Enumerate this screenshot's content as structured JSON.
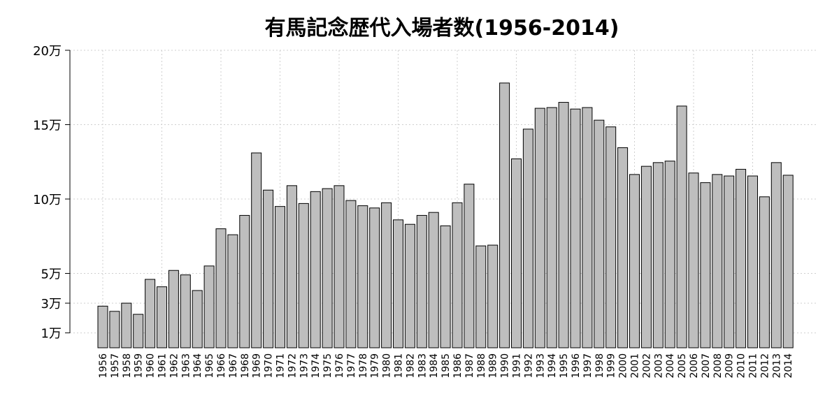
{
  "chart_data": {
    "type": "bar",
    "title": "有馬記念歴代入場者数(1956-2014)",
    "xlabel": "",
    "ylabel": "",
    "ylim": [
      0,
      200000
    ],
    "yticks": [
      10000,
      30000,
      50000,
      100000,
      150000,
      200000
    ],
    "ytick_labels": [
      "1万",
      "3万",
      "5万",
      "10万",
      "15万",
      "20万"
    ],
    "grid": true,
    "bar_color": "#bebebe",
    "categories": [
      "1956",
      "1957",
      "1958",
      "1959",
      "1960",
      "1961",
      "1962",
      "1963",
      "1964",
      "1965",
      "1966",
      "1967",
      "1968",
      "1969",
      "1970",
      "1971",
      "1972",
      "1973",
      "1974",
      "1975",
      "1976",
      "1977",
      "1978",
      "1979",
      "1980",
      "1981",
      "1982",
      "1983",
      "1984",
      "1985",
      "1986",
      "1987",
      "1988",
      "1989",
      "1990",
      "1991",
      "1992",
      "1993",
      "1994",
      "1995",
      "1996",
      "1997",
      "1998",
      "1999",
      "2000",
      "2001",
      "2002",
      "2003",
      "2004",
      "2005",
      "2006",
      "2007",
      "2008",
      "2009",
      "2010",
      "2011",
      "2012",
      "2013",
      "2014"
    ],
    "values": [
      28000,
      24500,
      30000,
      22500,
      46000,
      41000,
      52000,
      49000,
      38500,
      55000,
      80000,
      76000,
      89000,
      131000,
      106000,
      95000,
      109000,
      97000,
      105000,
      107000,
      109000,
      99000,
      95500,
      94000,
      97500,
      86000,
      83000,
      89000,
      91000,
      82000,
      97500,
      110000,
      68500,
      69000,
      178000,
      127000,
      147000,
      161000,
      161500,
      165000,
      160500,
      161500,
      153000,
      148500,
      134500,
      116500,
      122000,
      124500,
      125500,
      162500,
      117500,
      111000,
      116500,
      115500,
      120000,
      115500,
      101500,
      124500,
      116000
    ]
  }
}
